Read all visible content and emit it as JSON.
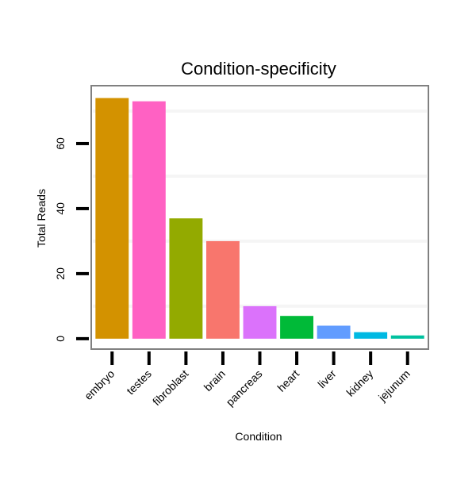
{
  "chart_data": {
    "type": "bar",
    "title": "Condition-specificity",
    "xlabel": "Condition",
    "ylabel": "Total Reads",
    "categories": [
      "embryo",
      "testes",
      "fibroblast",
      "brain",
      "pancreas",
      "heart",
      "liver",
      "kidney",
      "jejunum"
    ],
    "values": [
      74,
      73,
      37,
      30,
      10,
      7,
      4,
      2,
      1
    ],
    "colors": [
      "#D39200",
      "#FF61C3",
      "#93AA00",
      "#F8766D",
      "#DB72FB",
      "#00BA38",
      "#619CFF",
      "#00B9E3",
      "#00C19F"
    ],
    "yticks": [
      0,
      20,
      40,
      60
    ],
    "minor_grid": [
      10,
      30,
      50,
      70
    ],
    "ylim": [
      -3.2,
      77.8
    ],
    "grid": "minor horizontal",
    "legend": "none"
  }
}
